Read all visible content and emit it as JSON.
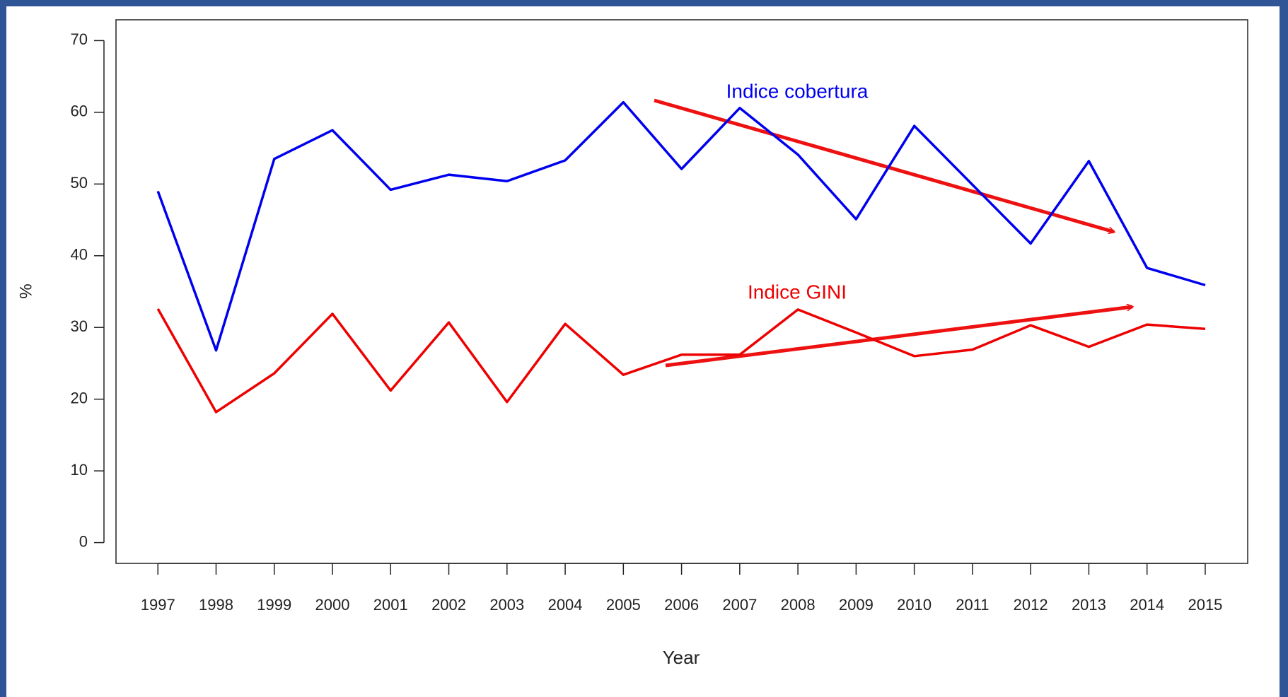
{
  "chart_data": {
    "type": "line",
    "xlabel": "Year",
    "ylabel": "%",
    "x": [
      1997,
      1998,
      1999,
      2000,
      2001,
      2002,
      2003,
      2004,
      2005,
      2006,
      2007,
      2008,
      2009,
      2010,
      2011,
      2012,
      2013,
      2014,
      2015
    ],
    "series": [
      {
        "name": "Indice cobertura",
        "color": "#0000ee",
        "values": [
          49,
          26.8,
          53.5,
          57.5,
          49.2,
          51.3,
          50.4,
          53.3,
          61.4,
          52.1,
          60.6,
          54.1,
          45.1,
          58.1,
          49.9,
          41.7,
          53.2,
          38.3,
          35.9
        ]
      },
      {
        "name": "Indice GINI",
        "color": "#ee0000",
        "values": [
          32.6,
          18.2,
          23.6,
          31.9,
          21.2,
          30.7,
          19.6,
          30.5,
          23.4,
          26.2,
          26.2,
          32.5,
          29.3,
          26.0,
          26.9,
          30.3,
          27.3,
          30.4,
          29.8
        ]
      }
    ],
    "xlim": [
      1996.28,
      2015.73
    ],
    "ylim": [
      -2.9,
      72.9
    ],
    "xticks": [
      1997,
      1998,
      1999,
      2000,
      2001,
      2002,
      2003,
      2004,
      2005,
      2006,
      2007,
      2008,
      2009,
      2010,
      2011,
      2012,
      2013,
      2014,
      2015
    ],
    "yticks": [
      0,
      10,
      20,
      30,
      40,
      50,
      60,
      70
    ],
    "grid": false
  }
}
